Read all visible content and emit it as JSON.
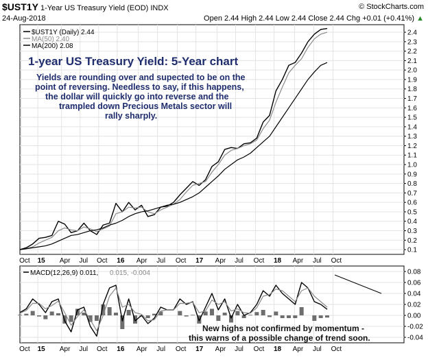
{
  "header": {
    "symbol": "$UST1Y",
    "name": "1-Year US Treasury Yield (EOD) INDX",
    "copyright": "© StockCharts.com",
    "date": "24-Aug-2018",
    "ohlc": "Open 2.44 High 2.44 Low 2.44 Close 2.44 Chg +0.01 (+0.41%)",
    "ohlc_arrow": "▲"
  },
  "chart_data": [
    {
      "type": "line",
      "title": "1-year US Treasury Yield: 5-Year chart",
      "annotation_lines": [
        "Yields are rounding over and supected to be on the",
        "point of reversing. Needless to say, if this happens,",
        "the dollar will quickly go into reverse and the",
        "trampled down Precious Metals sector will",
        "rally sharply."
      ],
      "legend": [
        {
          "label": "$UST1Y (Daily) 2.44",
          "color": "#000000"
        },
        {
          "label": "MA(50) 2.40",
          "color": "#8a8a8a"
        },
        {
          "label": "MA(200) 2.08",
          "color": "#000000"
        }
      ],
      "y_ticks": [
        "0.1",
        "0.2",
        "0.3",
        "0.4",
        "0.5",
        "0.6",
        "0.7",
        "0.8",
        "0.9",
        "1.0",
        "1.1",
        "1.2",
        "1.3",
        "1.4",
        "1.5",
        "1.6",
        "1.7",
        "1.8",
        "1.9",
        "2.0",
        "2.1",
        "2.2",
        "2.3",
        "2.4"
      ],
      "ylim": [
        0.05,
        2.48
      ],
      "xlim": [
        0,
        60
      ],
      "x_ticks": [
        {
          "label": "Oct",
          "x": 0.2,
          "bold": false
        },
        {
          "label": "15",
          "x": 2.8,
          "bold": true
        },
        {
          "label": "Apr",
          "x": 6.5,
          "bold": false
        },
        {
          "label": "Jul",
          "x": 9.4,
          "bold": false
        },
        {
          "label": "Oct",
          "x": 12.3,
          "bold": false
        },
        {
          "label": "16",
          "x": 15.2,
          "bold": true
        },
        {
          "label": "Apr",
          "x": 18.5,
          "bold": false
        },
        {
          "label": "Jul",
          "x": 21.5,
          "bold": false
        },
        {
          "label": "Oct",
          "x": 24.6,
          "bold": false
        },
        {
          "label": "17",
          "x": 27.5,
          "bold": true
        },
        {
          "label": "Apr",
          "x": 30.8,
          "bold": false
        },
        {
          "label": "Jul",
          "x": 33.7,
          "bold": false
        },
        {
          "label": "Oct",
          "x": 36.8,
          "bold": false
        },
        {
          "label": "18",
          "x": 39.7,
          "bold": true
        },
        {
          "label": "Apr",
          "x": 42.9,
          "bold": false
        },
        {
          "label": "Jul",
          "x": 45.9,
          "bold": false
        },
        {
          "label": "Oct",
          "x": 48.9,
          "bold": false
        }
      ],
      "x": [
        0,
        1,
        2,
        3,
        4,
        5,
        6,
        7,
        8,
        9,
        10,
        11,
        12,
        13,
        14,
        15,
        16,
        17,
        18,
        19,
        20,
        21,
        22,
        23,
        24,
        25,
        26,
        27,
        28,
        29,
        30,
        31,
        32,
        33,
        34,
        35,
        36,
        37,
        38,
        39,
        40,
        41,
        42,
        43,
        44,
        45,
        46,
        47,
        48
      ],
      "series": [
        {
          "name": "$UST1Y (Daily)",
          "values": [
            0.1,
            0.12,
            0.16,
            0.22,
            0.23,
            0.25,
            0.4,
            0.37,
            0.28,
            0.3,
            0.38,
            0.3,
            0.26,
            0.36,
            0.38,
            0.59,
            0.5,
            0.6,
            0.52,
            0.57,
            0.45,
            0.47,
            0.55,
            0.56,
            0.6,
            0.68,
            0.75,
            0.82,
            0.78,
            0.84,
            0.98,
            1.03,
            1.16,
            1.18,
            1.17,
            1.22,
            1.23,
            1.28,
            1.45,
            1.52,
            1.78,
            1.9,
            2.05,
            2.08,
            2.18,
            2.3,
            2.38,
            2.43,
            2.44
          ]
        },
        {
          "name": "MA(50)",
          "values": [
            0.1,
            0.11,
            0.13,
            0.17,
            0.2,
            0.23,
            0.3,
            0.33,
            0.31,
            0.3,
            0.34,
            0.32,
            0.29,
            0.32,
            0.35,
            0.48,
            0.5,
            0.55,
            0.54,
            0.55,
            0.5,
            0.48,
            0.52,
            0.55,
            0.58,
            0.63,
            0.71,
            0.78,
            0.8,
            0.82,
            0.92,
            1.0,
            1.1,
            1.15,
            1.17,
            1.2,
            1.22,
            1.26,
            1.38,
            1.47,
            1.66,
            1.82,
            1.97,
            2.05,
            2.12,
            2.24,
            2.33,
            2.38,
            2.4
          ]
        },
        {
          "name": "MA(200)",
          "values": [
            0.1,
            0.11,
            0.12,
            0.13,
            0.14,
            0.16,
            0.19,
            0.22,
            0.25,
            0.26,
            0.28,
            0.3,
            0.31,
            0.33,
            0.36,
            0.38,
            0.41,
            0.45,
            0.48,
            0.5,
            0.51,
            0.53,
            0.55,
            0.57,
            0.58,
            0.6,
            0.63,
            0.66,
            0.7,
            0.76,
            0.82,
            0.88,
            0.95,
            1.0,
            1.05,
            1.08,
            1.12,
            1.18,
            1.24,
            1.3,
            1.4,
            1.5,
            1.6,
            1.7,
            1.8,
            1.9,
            1.98,
            2.05,
            2.08
          ]
        }
      ]
    },
    {
      "type": "line",
      "title": "MACD",
      "legend": [
        {
          "label": "MACD(12,26,9) 0.011,",
          "color": "#000000"
        },
        {
          "label": "0.015, -0.004",
          "color": "#8a8a8a"
        }
      ],
      "annotation_lines": [
        "New highs not confirmed by momentum -",
        "this warns of a possible change of trend soon."
      ],
      "y_ticks": [
        "-0.04",
        "-0.02",
        "0.00",
        "0.02",
        "0.04",
        "0.06",
        "0.08"
      ],
      "ylim": [
        -0.05,
        0.09
      ],
      "xlim": [
        0,
        60
      ],
      "x_ticks": [
        {
          "label": "Oct",
          "x": 0.2,
          "bold": false
        },
        {
          "label": "15",
          "x": 2.8,
          "bold": true
        },
        {
          "label": "Apr",
          "x": 6.5,
          "bold": false
        },
        {
          "label": "Jul",
          "x": 9.4,
          "bold": false
        },
        {
          "label": "Oct",
          "x": 12.3,
          "bold": false
        },
        {
          "label": "16",
          "x": 15.2,
          "bold": true
        },
        {
          "label": "Apr",
          "x": 18.5,
          "bold": false
        },
        {
          "label": "Jul",
          "x": 21.5,
          "bold": false
        },
        {
          "label": "Oct",
          "x": 24.6,
          "bold": false
        },
        {
          "label": "17",
          "x": 27.5,
          "bold": true
        },
        {
          "label": "Apr",
          "x": 30.8,
          "bold": false
        },
        {
          "label": "Jul",
          "x": 33.7,
          "bold": false
        },
        {
          "label": "Oct",
          "x": 36.8,
          "bold": false
        },
        {
          "label": "18",
          "x": 39.7,
          "bold": true
        },
        {
          "label": "Apr",
          "x": 42.9,
          "bold": false
        },
        {
          "label": "Jul",
          "x": 45.9,
          "bold": false
        },
        {
          "label": "Oct",
          "x": 48.9,
          "bold": false
        }
      ],
      "x": [
        0,
        1,
        2,
        3,
        4,
        5,
        6,
        7,
        8,
        9,
        10,
        11,
        12,
        13,
        14,
        15,
        16,
        17,
        18,
        19,
        20,
        21,
        22,
        23,
        24,
        25,
        26,
        27,
        28,
        29,
        30,
        31,
        32,
        33,
        34,
        35,
        36,
        37,
        38,
        39,
        40,
        41,
        42,
        43,
        44,
        45,
        46,
        47,
        48
      ],
      "series": [
        {
          "name": "MACD",
          "values": [
            0.005,
            0.012,
            0.03,
            0.02,
            0.005,
            0.025,
            0.03,
            -0.01,
            -0.03,
            0.01,
            0.015,
            -0.02,
            -0.038,
            0.02,
            0.05,
            0.055,
            -0.01,
            0.03,
            -0.01,
            0.0,
            -0.015,
            -0.005,
            0.015,
            0.01,
            0.01,
            0.03,
            0.02,
            0.025,
            -0.01,
            0.015,
            0.04,
            0.01,
            0.03,
            -0.005,
            0.02,
            0.0,
            0.005,
            0.02,
            0.045,
            0.035,
            0.055,
            0.04,
            0.03,
            0.02,
            0.06,
            0.05,
            0.025,
            0.02,
            0.011
          ]
        },
        {
          "name": "Signal",
          "values": [
            0.004,
            0.009,
            0.022,
            0.022,
            0.012,
            0.018,
            0.026,
            0.005,
            -0.018,
            -0.002,
            0.01,
            -0.008,
            -0.028,
            0.0,
            0.035,
            0.05,
            0.015,
            0.02,
            0.005,
            0.002,
            -0.01,
            -0.008,
            0.008,
            0.01,
            0.01,
            0.022,
            0.022,
            0.024,
            0.005,
            0.008,
            0.028,
            0.02,
            0.025,
            0.008,
            0.012,
            0.005,
            0.004,
            0.014,
            0.035,
            0.038,
            0.048,
            0.045,
            0.035,
            0.025,
            0.045,
            0.05,
            0.035,
            0.025,
            0.015
          ]
        },
        {
          "name": "Histogram",
          "values": [
            0.001,
            0.003,
            0.008,
            -0.002,
            -0.007,
            0.007,
            0.004,
            -0.015,
            -0.012,
            0.012,
            0.005,
            -0.012,
            -0.01,
            0.02,
            0.015,
            0.005,
            -0.025,
            0.01,
            -0.015,
            -0.002,
            -0.005,
            0.003,
            0.007,
            0.0,
            0.0,
            0.008,
            -0.002,
            0.001,
            -0.015,
            0.007,
            0.012,
            -0.01,
            0.005,
            -0.013,
            0.008,
            -0.005,
            0.001,
            0.006,
            0.01,
            -0.003,
            0.007,
            -0.005,
            -0.005,
            -0.005,
            0.015,
            0.0,
            -0.01,
            -0.005,
            -0.004
          ]
        }
      ]
    }
  ]
}
